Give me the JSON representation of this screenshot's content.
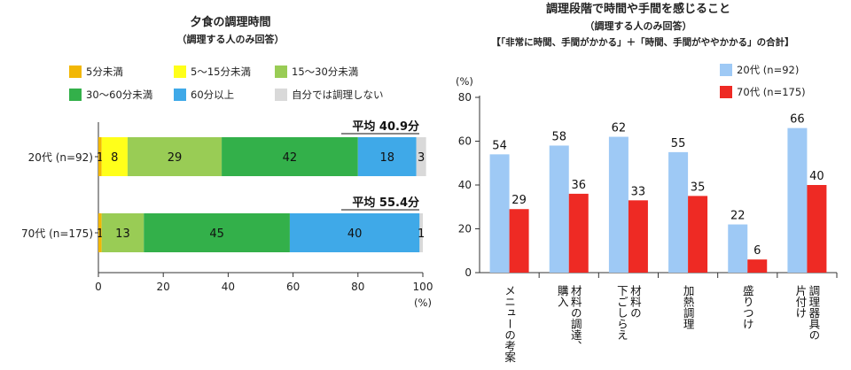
{
  "chart_data": [
    {
      "type": "bar",
      "orientation": "horizontal",
      "stacked": true,
      "title": "夕食の調理時間",
      "subtitle": "（調理する人のみ回答）",
      "categories": [
        "20代 (n=92)",
        "70代 (n=175)"
      ],
      "series": [
        {
          "name": "5分未満",
          "color": "#f2b705",
          "values": [
            1,
            1
          ]
        },
        {
          "name": "5～15分未満",
          "color": "#ffff1a",
          "values": [
            8,
            0
          ]
        },
        {
          "name": "15～30分未満",
          "color": "#99cc55",
          "values": [
            29,
            13
          ]
        },
        {
          "name": "30～60分未満",
          "color": "#33b04a",
          "values": [
            42,
            45
          ]
        },
        {
          "name": "60分以上",
          "color": "#3fa9e8",
          "values": [
            18,
            40
          ]
        },
        {
          "name": "自分では調理しない",
          "color": "#d9d9d9",
          "values": [
            3,
            1
          ]
        }
      ],
      "segment_labels": [
        [
          "1",
          "8",
          "29",
          "42",
          "18",
          "3"
        ],
        [
          "1",
          "",
          "13",
          "45",
          "40",
          "1"
        ]
      ],
      "averages": [
        "平均 40.9分",
        "平均 55.4分"
      ],
      "xlim": [
        0,
        100
      ],
      "xticks": [
        "0",
        "20",
        "40",
        "60",
        "80",
        "100"
      ],
      "xlabel": "(%)",
      "legend_position": "top"
    },
    {
      "type": "bar",
      "title": "調理段階で時間や手間を感じること",
      "subtitle": "（調理する人のみ回答）",
      "note": "【「非常に時間、手間がかかる」＋「時間、手間がややかかる」の合計】",
      "categories": [
        "メニューの考案",
        "材料の調達、購入",
        "材料の下ごしらえ",
        "加熱調理",
        "盛りつけ",
        "調理器具の片付け"
      ],
      "categories_display": [
        [
          "メニューの考案"
        ],
        [
          "材料の調達、",
          "購入"
        ],
        [
          "材料の",
          "下ごしらえ"
        ],
        [
          "加熱調理"
        ],
        [
          "盛りつけ"
        ],
        [
          "調理器具の",
          "片付け"
        ]
      ],
      "series": [
        {
          "name": "20代 (n=92)",
          "color": "#9ec9f5",
          "values": [
            54,
            58,
            62,
            55,
            22,
            66
          ]
        },
        {
          "name": "70代 (n=175)",
          "color": "#ee2a24",
          "values": [
            29,
            36,
            33,
            35,
            6,
            40
          ]
        }
      ],
      "ylabel": "(%)",
      "ylim": [
        0,
        80
      ],
      "yticks": [
        "0",
        "20",
        "40",
        "60",
        "80"
      ],
      "legend_position": "top-right"
    }
  ]
}
